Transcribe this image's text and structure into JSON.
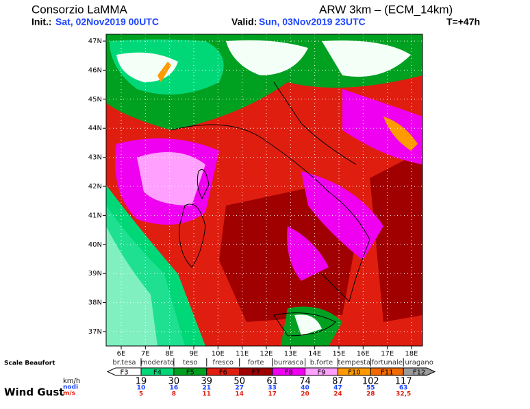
{
  "header": {
    "title": "Consorzio LaMMA",
    "model": "ARW 3km – (ECM_14km)",
    "init_label": "Init.:",
    "init_value": "Sat, 02Nov2019 00UTC",
    "valid_label": "Valid:",
    "valid_value": "Sun, 03Nov2019 23UTC",
    "lead": "T=+47h"
  },
  "map": {
    "lat_labels": [
      "47N",
      "46N",
      "45N",
      "44N",
      "43N",
      "42N",
      "41N",
      "40N",
      "39N",
      "38N",
      "37N"
    ],
    "lon_labels": [
      "6E",
      "7E",
      "8E",
      "9E",
      "10E",
      "11E",
      "12E",
      "13E",
      "14E",
      "15E",
      "16E",
      "17E",
      "18E"
    ]
  },
  "legend": {
    "title": "Scale Beaufort",
    "row_title": "Wind Gust",
    "unit_kmh": "km/h",
    "unit_nodi": "nodi",
    "unit_ms": "m/s",
    "classes": [
      {
        "name": "br.tesa",
        "label": "F3",
        "color": "#ffffff"
      },
      {
        "name": "moderato",
        "label": "F4",
        "color": "#00d878"
      },
      {
        "name": "teso",
        "label": "F5",
        "color": "#00a020"
      },
      {
        "name": "fresco",
        "label": "F6",
        "color": "#e01e10"
      },
      {
        "name": "forte",
        "label": "F7",
        "color": "#a00000"
      },
      {
        "name": "burrasca",
        "label": "F8",
        "color": "#f000f0"
      },
      {
        "name": "b.forte",
        "label": "F9",
        "color": "#ffa0ff"
      },
      {
        "name": "tempesta",
        "label": "F10",
        "color": "#ff9a00"
      },
      {
        "name": "fortunale",
        "label": "F11",
        "color": "#f06a00"
      },
      {
        "name": "uragano",
        "label": "F12",
        "color": "#9a9a9a"
      }
    ],
    "thresholds": [
      {
        "kmh": "19",
        "nodi": "10",
        "ms": "5"
      },
      {
        "kmh": "30",
        "nodi": "16",
        "ms": "8"
      },
      {
        "kmh": "39",
        "nodi": "21",
        "ms": "11"
      },
      {
        "kmh": "50",
        "nodi": "27",
        "ms": "14"
      },
      {
        "kmh": "61",
        "nodi": "33",
        "ms": "17"
      },
      {
        "kmh": "74",
        "nodi": "40",
        "ms": "20"
      },
      {
        "kmh": "87",
        "nodi": "47",
        "ms": "24"
      },
      {
        "kmh": "102",
        "nodi": "55",
        "ms": "28"
      },
      {
        "kmh": "117",
        "nodi": "63",
        "ms": "32,5"
      }
    ]
  }
}
